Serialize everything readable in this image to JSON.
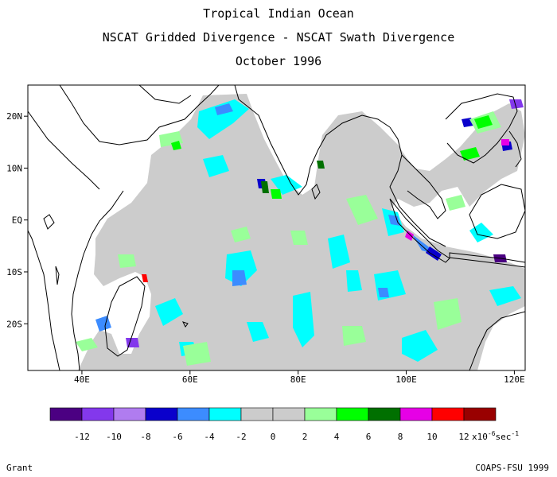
{
  "title": "Tropical Indian Ocean",
  "subtitle": "NSCAT Gridded Divergence - NSCAT Swath Divergence",
  "date": "October 1996",
  "map": {
    "lon_range": [
      30,
      122
    ],
    "lat_range": [
      -29,
      26
    ],
    "lat_labels": [
      {
        "lat": 20,
        "text": "20N"
      },
      {
        "lat": 10,
        "text": "10N"
      },
      {
        "lat": 0,
        "text": "EQ"
      },
      {
        "lat": -10,
        "text": "10S"
      },
      {
        "lat": -20,
        "text": "20S"
      }
    ],
    "lon_labels": [
      {
        "lon": 40,
        "text": "40E"
      },
      {
        "lon": 60,
        "text": "60E"
      },
      {
        "lon": 80,
        "text": "80E"
      },
      {
        "lon": 100,
        "text": "100E"
      },
      {
        "lon": 120,
        "text": "120E"
      }
    ],
    "background_color": "#cccccc"
  },
  "colorbar": {
    "colors": [
      "#4b0082",
      "#8338ec",
      "#b07cf0",
      "#0a00cc",
      "#3c8cff",
      "#00ffff",
      "#cccccc",
      "#cccccc",
      "#99ff99",
      "#00ff00",
      "#007000",
      "#e600e6",
      "#ff0000",
      "#990000"
    ],
    "tick_labels": [
      "-12",
      "-10",
      "-8",
      "-6",
      "-4",
      "-2",
      "0",
      "2",
      "4",
      "6",
      "8",
      "10",
      "12"
    ],
    "units": "x10",
    "exponent": "-6",
    "unit_suffix": "sec",
    "unit_exp": "-1"
  },
  "footer": {
    "left": "Grant",
    "right": "COAPS-FSU 1999"
  }
}
